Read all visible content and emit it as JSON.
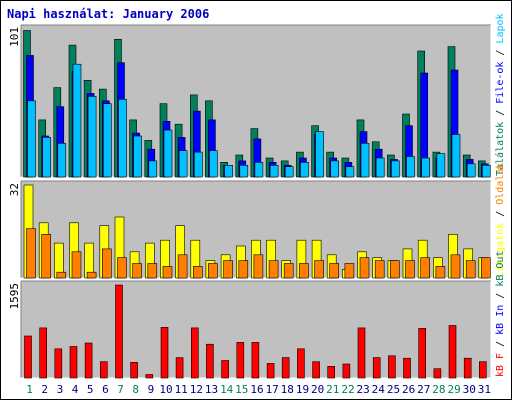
{
  "title": "Napi használat: January 2006",
  "colors": {
    "hits": "#00805c",
    "files": "#0000ff",
    "pages": "#00c0ff",
    "visits": "#ffff00",
    "sites": "#ff8000",
    "kbytes": "#ff0000",
    "panel_bg": "#c0c0c0",
    "weekend_label": "#00805c",
    "weekday_label": "#000080"
  },
  "chart_data": [
    {
      "type": "bar",
      "panel": "top",
      "ymax_label": "101",
      "ylim": [
        0,
        101
      ],
      "categories": [
        "1",
        "2",
        "3",
        "4",
        "5",
        "6",
        "7",
        "8",
        "9",
        "10",
        "11",
        "12",
        "13",
        "14",
        "15",
        "16",
        "17",
        "18",
        "19",
        "20",
        "21",
        "22",
        "23",
        "24",
        "25",
        "26",
        "27",
        "28",
        "29",
        "30",
        "31"
      ],
      "weekend_days": [
        "1",
        "7",
        "8",
        "14",
        "15",
        "21",
        "22",
        "28",
        "29"
      ],
      "series": [
        {
          "name": "Találatok",
          "values": [
            100,
            39,
            61,
            90,
            66,
            60,
            94,
            39,
            25,
            50,
            36,
            56,
            52,
            10,
            15,
            33,
            13,
            11,
            17,
            35,
            17,
            13,
            39,
            24,
            15,
            43,
            86,
            17,
            89,
            15,
            11
          ]
        },
        {
          "name": "File-ok",
          "values": [
            83,
            28,
            48,
            72,
            57,
            52,
            78,
            30,
            19,
            38,
            27,
            45,
            39,
            8,
            11,
            26,
            10,
            8,
            13,
            29,
            13,
            10,
            31,
            19,
            12,
            35,
            71,
            13,
            73,
            12,
            9
          ]
        },
        {
          "name": "Lapok",
          "values": [
            52,
            27,
            23,
            77,
            55,
            50,
            53,
            28,
            11,
            32,
            18,
            17,
            18,
            8,
            8,
            10,
            8,
            7,
            10,
            31,
            11,
            7,
            23,
            13,
            11,
            14,
            13,
            16,
            29,
            9,
            8
          ]
        }
      ]
    },
    {
      "type": "bar",
      "panel": "middle",
      "ymax_label": "32",
      "ylim": [
        0,
        32
      ],
      "categories": [
        "1",
        "2",
        "3",
        "4",
        "5",
        "6",
        "7",
        "8",
        "9",
        "10",
        "11",
        "12",
        "13",
        "14",
        "15",
        "16",
        "17",
        "18",
        "19",
        "20",
        "21",
        "22",
        "23",
        "24",
        "25",
        "26",
        "27",
        "28",
        "29",
        "30",
        "31"
      ],
      "series": [
        {
          "name": "Látogatók",
          "values": [
            32,
            19,
            12,
            19,
            12,
            18,
            21,
            9,
            12,
            13,
            18,
            13,
            6,
            8,
            11,
            13,
            13,
            6,
            13,
            13,
            8,
            3,
            9,
            7,
            6,
            10,
            13,
            7,
            15,
            10,
            7
          ]
        },
        {
          "name": "Oldalak",
          "values": [
            17,
            15,
            2,
            9,
            2,
            10,
            7,
            5,
            5,
            4,
            8,
            4,
            5,
            6,
            6,
            8,
            6,
            5,
            5,
            6,
            5,
            5,
            7,
            6,
            6,
            6,
            7,
            4,
            8,
            6,
            7
          ]
        }
      ]
    },
    {
      "type": "bar",
      "panel": "bottom",
      "ymax_label": "1595",
      "ylim": [
        0,
        1595
      ],
      "categories": [
        "1",
        "2",
        "3",
        "4",
        "5",
        "6",
        "7",
        "8",
        "9",
        "10",
        "11",
        "12",
        "13",
        "14",
        "15",
        "16",
        "17",
        "18",
        "19",
        "20",
        "21",
        "22",
        "23",
        "24",
        "25",
        "26",
        "27",
        "28",
        "29",
        "30",
        "31"
      ],
      "series": [
        {
          "name": "kB F",
          "values": [
            720,
            860,
            500,
            540,
            600,
            280,
            1595,
            270,
            60,
            870,
            350,
            860,
            580,
            300,
            610,
            610,
            250,
            350,
            500,
            280,
            200,
            240,
            860,
            350,
            380,
            340,
            850,
            160,
            900,
            340,
            280
          ]
        }
      ]
    }
  ],
  "side_legend": {
    "top": [
      "Találatok",
      "/",
      "File-ok",
      "/",
      "Lapok"
    ],
    "middle": [
      "Látogatók",
      "/",
      "Oldalak"
    ],
    "bottom": [
      "kB F",
      "/",
      "kB In",
      "/",
      "kB Out"
    ]
  }
}
